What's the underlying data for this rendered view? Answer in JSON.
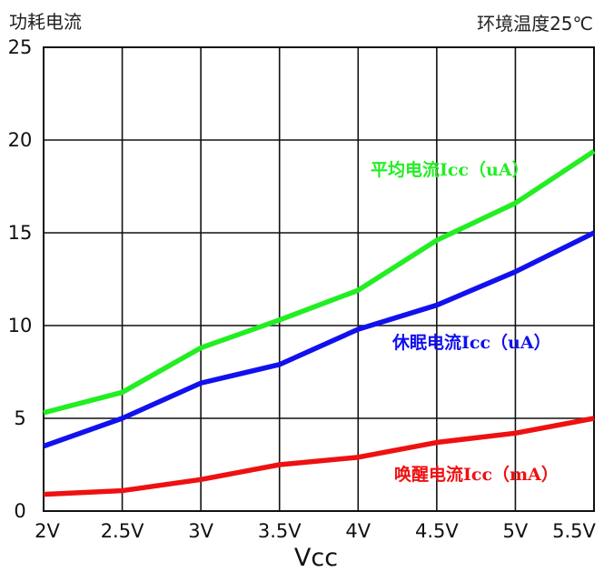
{
  "header": {
    "ylabel": "功耗电流",
    "condition": "环境温度25℃"
  },
  "chart_data": {
    "type": "line",
    "title": "",
    "xlabel": "Vcc",
    "ylabel": "功耗电流",
    "x": [
      "2V",
      "2.5V",
      "3V",
      "3.5V",
      "4V",
      "4.5V",
      "5V",
      "5.5V"
    ],
    "ylim": [
      0,
      25
    ],
    "yticks": [
      0,
      5,
      10,
      15,
      20,
      25
    ],
    "grid": true,
    "series": [
      {
        "name": "平均电流Icc（uA）",
        "color": "#22ee22",
        "values": [
          5.3,
          6.4,
          8.8,
          10.3,
          11.9,
          14.6,
          16.6,
          19.4
        ]
      },
      {
        "name": "休眠电流Icc（uA）",
        "color": "#1111ee",
        "values": [
          3.5,
          5.0,
          6.9,
          7.9,
          9.8,
          11.1,
          12.9,
          15.0
        ]
      },
      {
        "name": "唤醒电流Icc（mA）",
        "color": "#ee1111",
        "values": [
          0.9,
          1.1,
          1.7,
          2.5,
          2.9,
          3.7,
          4.2,
          5.0
        ]
      }
    ]
  }
}
